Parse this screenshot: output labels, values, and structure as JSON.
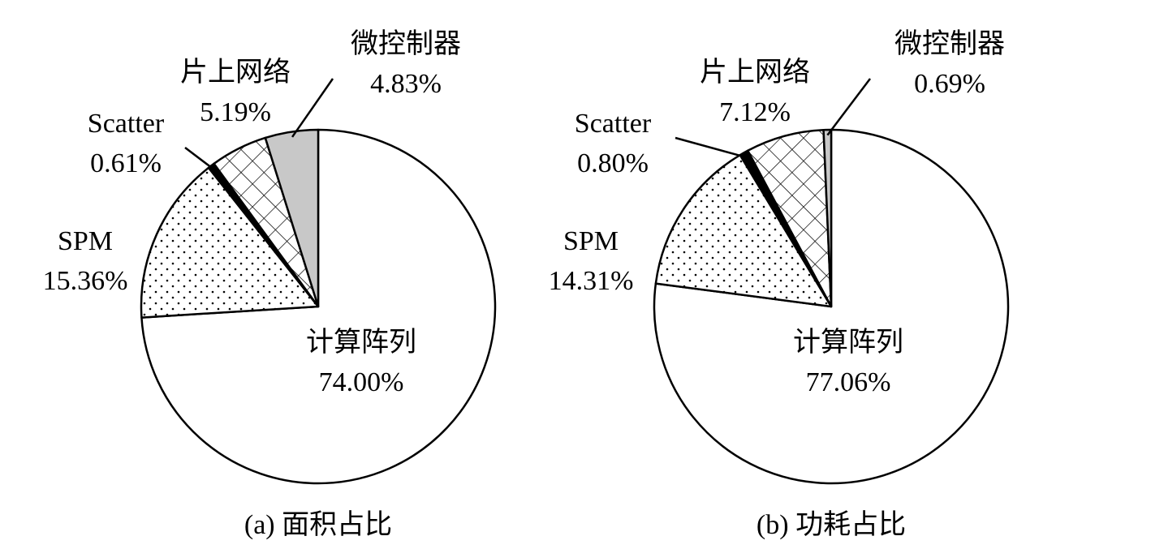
{
  "chart_data": [
    {
      "type": "pie",
      "title": "(a)  面积占比",
      "categories": [
        "计算阵列",
        "SPM",
        "Scatter",
        "片上网络",
        "微控制器"
      ],
      "values": [
        74.0,
        15.36,
        0.61,
        5.19,
        4.83
      ],
      "value_labels": [
        "74.00%",
        "15.36%",
        "0.61%",
        "5.19%",
        "4.83%"
      ],
      "colors": [
        "#ffffff",
        "#ffffff",
        "#000000",
        "#ffffff",
        "#c8c8c8"
      ],
      "patterns": [
        "none",
        "dots",
        "none",
        "crosshatch",
        "none"
      ]
    },
    {
      "type": "pie",
      "title": "(b)  功耗占比",
      "categories": [
        "计算阵列",
        "SPM",
        "Scatter",
        "片上网络",
        "微控制器"
      ],
      "values": [
        77.06,
        14.31,
        0.8,
        7.12,
        0.69
      ],
      "value_labels": [
        "77.06%",
        "14.31%",
        "0.80%",
        "7.12%",
        "0.69%"
      ],
      "colors": [
        "#ffffff",
        "#ffffff",
        "#000000",
        "#ffffff",
        "#c8c8c8"
      ],
      "patterns": [
        "none",
        "dots",
        "none",
        "crosshatch",
        "none"
      ]
    }
  ]
}
